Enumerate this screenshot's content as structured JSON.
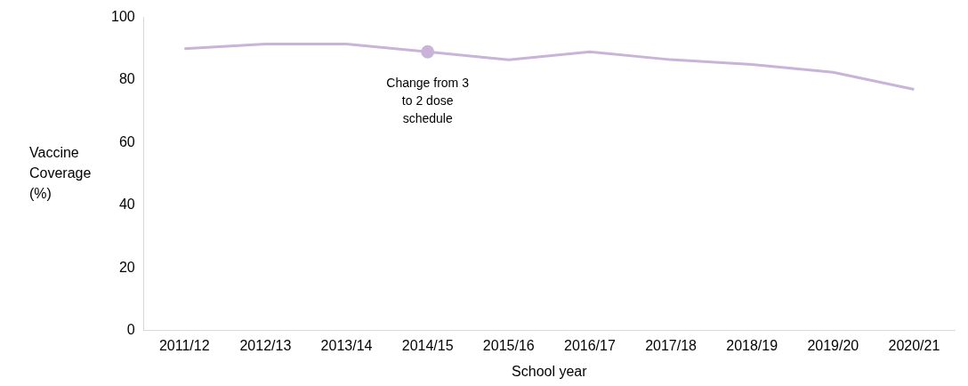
{
  "chart_data": {
    "type": "line",
    "categories": [
      "2011/12",
      "2012/13",
      "2013/14",
      "2014/15",
      "2015/16",
      "2016/17",
      "2017/18",
      "2018/19",
      "2019/20",
      "2020/21"
    ],
    "values": [
      90,
      91.5,
      91.5,
      89,
      86.5,
      89,
      86.5,
      85,
      82.5,
      77
    ],
    "color": "#c9b3d9",
    "x_label": "School year",
    "y_label": "Vaccine Coverage (%)",
    "ylim": [
      0,
      100
    ],
    "yticks": [
      0,
      20,
      40,
      60,
      80,
      100
    ],
    "grid": false,
    "annotations": [
      {
        "text": "Change from 3 to 2 dose schedule",
        "x": "2014/15"
      }
    ]
  }
}
